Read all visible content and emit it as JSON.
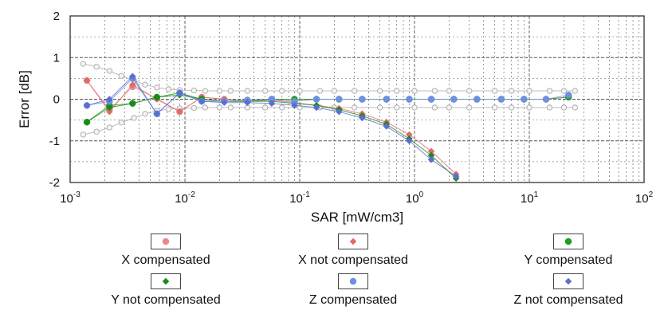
{
  "chart_data": {
    "type": "scatter",
    "title": "",
    "xlabel": "SAR [mW/cm3]",
    "ylabel": "Error [dB]",
    "x_scale": "log",
    "xlim": [
      0.001,
      100
    ],
    "ylim": [
      -2,
      2
    ],
    "grid": true,
    "x_ticks": [
      {
        "base": "10",
        "exp": "-3"
      },
      {
        "base": "10",
        "exp": "-2"
      },
      {
        "base": "10",
        "exp": "-1"
      },
      {
        "base": "10",
        "exp": "0"
      },
      {
        "base": "10",
        "exp": "1"
      },
      {
        "base": "10",
        "exp": "2"
      }
    ],
    "y_ticks": [
      "2",
      "1",
      "0",
      "-1",
      "-2"
    ],
    "legend_position": "bottom",
    "uncertainty_band": {
      "color": "#bdbdbd",
      "x": [
        0.0013,
        0.0017,
        0.0022,
        0.0028,
        0.0036,
        0.0045,
        0.0057,
        0.0072,
        0.009,
        0.012,
        0.015,
        0.02,
        0.025,
        0.035,
        0.05,
        0.07,
        0.1,
        0.15,
        0.2,
        0.3,
        0.5,
        0.7,
        1,
        1.5,
        2,
        3,
        5,
        7,
        10,
        15,
        20,
        25
      ],
      "upper": [
        0.85,
        0.78,
        0.68,
        0.56,
        0.45,
        0.35,
        0.28,
        0.24,
        0.22,
        0.21,
        0.2,
        0.2,
        0.2,
        0.2,
        0.2,
        0.2,
        0.2,
        0.2,
        0.2,
        0.2,
        0.2,
        0.2,
        0.2,
        0.2,
        0.2,
        0.2,
        0.2,
        0.2,
        0.2,
        0.2,
        0.2,
        0.2
      ],
      "lower": [
        -0.85,
        -0.78,
        -0.68,
        -0.56,
        -0.45,
        -0.35,
        -0.28,
        -0.24,
        -0.22,
        -0.21,
        -0.2,
        -0.2,
        -0.2,
        -0.2,
        -0.2,
        -0.2,
        -0.2,
        -0.2,
        -0.2,
        -0.2,
        -0.2,
        -0.2,
        -0.2,
        -0.2,
        -0.2,
        -0.2,
        -0.2,
        -0.2,
        -0.2,
        -0.2,
        -0.2,
        -0.2
      ]
    },
    "series": [
      {
        "name": "X compensated",
        "marker": "circle",
        "color": "#e88a8a",
        "x": [
          0.0014,
          0.0022,
          0.0035,
          0.0057,
          0.009,
          0.014,
          0.022,
          0.035,
          0.057,
          0.09,
          0.14,
          0.22,
          0.35,
          0.57,
          0.9,
          1.4,
          2.2,
          3.5,
          5.7,
          9,
          14,
          22
        ],
        "y": [
          0.45,
          -0.25,
          0.3,
          0.02,
          -0.3,
          0.05,
          0.0,
          -0.05,
          0.0,
          -0.05,
          0.0,
          0.0,
          0.0,
          0.0,
          0.0,
          0.0,
          0.0,
          0.0,
          0.0,
          0.0,
          0.0,
          0.05
        ]
      },
      {
        "name": "X not compensated",
        "marker": "diamond",
        "color": "#e06a6a",
        "x": [
          0.0014,
          0.0022,
          0.0035,
          0.0057,
          0.009,
          0.014,
          0.022,
          0.035,
          0.057,
          0.09,
          0.14,
          0.22,
          0.35,
          0.57,
          0.9,
          1.4,
          2.3
        ],
        "y": [
          0.45,
          -0.3,
          0.35,
          0.0,
          -0.3,
          0.05,
          0.0,
          -0.05,
          -0.02,
          -0.08,
          -0.15,
          -0.22,
          -0.35,
          -0.55,
          -0.85,
          -1.25,
          -1.8
        ]
      },
      {
        "name": "Y compensated",
        "marker": "circle",
        "color": "#1e9e1e",
        "x": [
          0.0014,
          0.0022,
          0.0035,
          0.0057,
          0.009,
          0.014,
          0.022,
          0.035,
          0.057,
          0.09,
          0.14,
          0.22,
          0.35,
          0.57,
          0.9,
          1.4,
          2.2,
          3.5,
          5.7,
          9,
          14,
          22
        ],
        "y": [
          -0.55,
          -0.15,
          -0.1,
          0.05,
          0.15,
          0.0,
          -0.05,
          -0.05,
          0.0,
          0.0,
          0.0,
          0.0,
          0.0,
          0.0,
          0.0,
          0.0,
          0.0,
          0.0,
          0.0,
          0.0,
          0.0,
          0.05
        ]
      },
      {
        "name": "Y not compensated",
        "marker": "diamond",
        "color": "#1a8a1a",
        "x": [
          0.0014,
          0.0022,
          0.0035,
          0.0057,
          0.009,
          0.014,
          0.022,
          0.035,
          0.057,
          0.09,
          0.14,
          0.22,
          0.35,
          0.57,
          0.9,
          1.4,
          2.3
        ],
        "y": [
          -0.55,
          -0.2,
          -0.1,
          0.05,
          0.1,
          0.0,
          -0.05,
          -0.05,
          -0.05,
          -0.1,
          -0.15,
          -0.25,
          -0.4,
          -0.6,
          -0.95,
          -1.35,
          -1.9
        ]
      },
      {
        "name": "Z compensated",
        "marker": "circle",
        "color": "#6f8fe0",
        "x": [
          0.0014,
          0.0022,
          0.0035,
          0.0057,
          0.009,
          0.014,
          0.022,
          0.035,
          0.057,
          0.09,
          0.14,
          0.22,
          0.35,
          0.57,
          0.9,
          1.4,
          2.2,
          3.5,
          5.7,
          9,
          14,
          22
        ],
        "y": [
          -0.15,
          -0.05,
          0.5,
          -0.35,
          0.15,
          -0.05,
          -0.05,
          -0.02,
          0.0,
          -0.05,
          0.0,
          0.0,
          0.0,
          0.0,
          0.0,
          0.0,
          0.0,
          0.0,
          0.0,
          0.0,
          0.0,
          0.1
        ]
      },
      {
        "name": "Z not compensated",
        "marker": "diamond",
        "color": "#5a6fd0",
        "x": [
          0.0014,
          0.0022,
          0.0035,
          0.0057,
          0.009,
          0.014,
          0.022,
          0.035,
          0.057,
          0.09,
          0.14,
          0.22,
          0.35,
          0.57,
          0.9,
          1.4,
          2.3
        ],
        "y": [
          -0.15,
          0.0,
          0.55,
          -0.35,
          0.15,
          -0.05,
          -0.08,
          -0.08,
          -0.1,
          -0.15,
          -0.2,
          -0.3,
          -0.45,
          -0.65,
          -1.0,
          -1.45,
          -1.85
        ]
      }
    ]
  }
}
